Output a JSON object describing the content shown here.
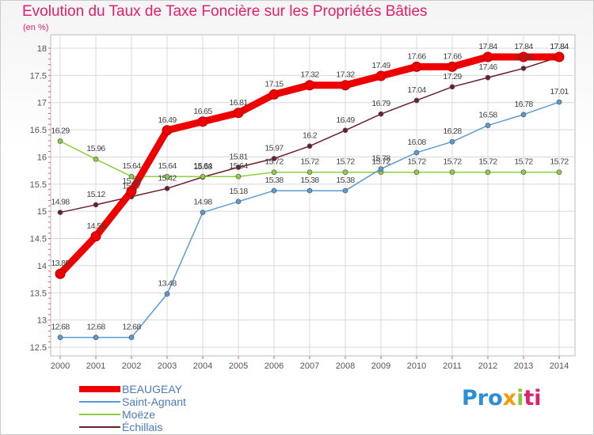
{
  "header": {
    "title": "Evolution du Taux de Taxe Foncière sur les Propriétés Bâties",
    "unit": "(en %)"
  },
  "logo": {
    "parts": [
      "Pro",
      "x",
      "i",
      "ti"
    ]
  },
  "colors": {
    "title": "#e0206e",
    "axis_text": "#555555",
    "grid": "#d8d8d8",
    "label_text": "#444444",
    "legend_text": "#4a7bb7"
  },
  "chart_data": {
    "type": "line",
    "title": "Evolution du Taux de Taxe Foncière sur les Propriétés Bâties",
    "ylabel": "(en %)",
    "x": [
      "2000",
      "2001",
      "2002",
      "2003",
      "2004",
      "2005",
      "2006",
      "2007",
      "2008",
      "2009",
      "2010",
      "2011",
      "2012",
      "2013",
      "2014"
    ],
    "ylim": [
      12.5,
      18
    ],
    "yticks": [
      "12.5",
      "13",
      "13.5",
      "14",
      "14.5",
      "15",
      "15.5",
      "16",
      "16.5",
      "17",
      "17.5",
      "18"
    ],
    "grid": true,
    "legend_position": "bottom-left",
    "series": [
      {
        "name": "BEAUGEAY",
        "color": "#ee0000",
        "thick": true,
        "values": [
          13.85,
          14.54,
          15.37,
          16.49,
          16.65,
          16.81,
          17.15,
          17.32,
          17.32,
          17.49,
          17.66,
          17.66,
          17.84,
          17.84,
          17.84
        ],
        "labels": [
          "13.85",
          "14.54",
          "15.37",
          "16.49",
          "16.65",
          "16.81",
          "17.15",
          "17.32",
          "17.32",
          "17.49",
          "17.66",
          "17.66",
          "17.84",
          "17.84",
          "17.84"
        ]
      },
      {
        "name": "Saint-Agnant",
        "color": "#5b9bd5",
        "values": [
          12.68,
          12.68,
          12.68,
          13.48,
          14.98,
          15.18,
          15.38,
          15.38,
          15.38,
          15.78,
          16.08,
          16.28,
          16.58,
          16.78,
          17.01
        ],
        "labels": [
          "12.68",
          "12.68",
          "12.68",
          "13.48",
          "14.98",
          "15.18",
          "15.38",
          "15.38",
          "15.38",
          "15.78",
          "16.08",
          "16.28",
          "16.58",
          "16.78",
          "17.01"
        ]
      },
      {
        "name": "Moëze",
        "color": "#8cd040",
        "values": [
          16.29,
          15.96,
          15.64,
          15.64,
          15.64,
          15.64,
          15.72,
          15.72,
          15.72,
          15.72,
          15.72,
          15.72,
          15.72,
          15.72,
          15.72
        ],
        "labels": [
          "16.29",
          "15.96",
          "15.64",
          "15.64",
          "15.64",
          "15.64",
          "15.72",
          "15.72",
          "15.72",
          "15.72",
          "15.72",
          "15.72",
          "15.72",
          "15.72",
          "15.72"
        ]
      },
      {
        "name": "Échillais",
        "color": "#6b1f2a",
        "values": [
          14.98,
          15.12,
          15.27,
          15.42,
          15.63,
          15.81,
          15.97,
          16.2,
          16.49,
          16.79,
          17.04,
          17.29,
          17.46,
          17.63,
          17.84
        ],
        "labels": [
          "14.98",
          "15.12",
          "15.27",
          "15.42",
          "15.63",
          "15.81",
          "15.97",
          "16.2",
          "16.49",
          "16.79",
          "17.04",
          "17.29",
          "17.46",
          "17.63",
          "17.84"
        ]
      }
    ]
  }
}
